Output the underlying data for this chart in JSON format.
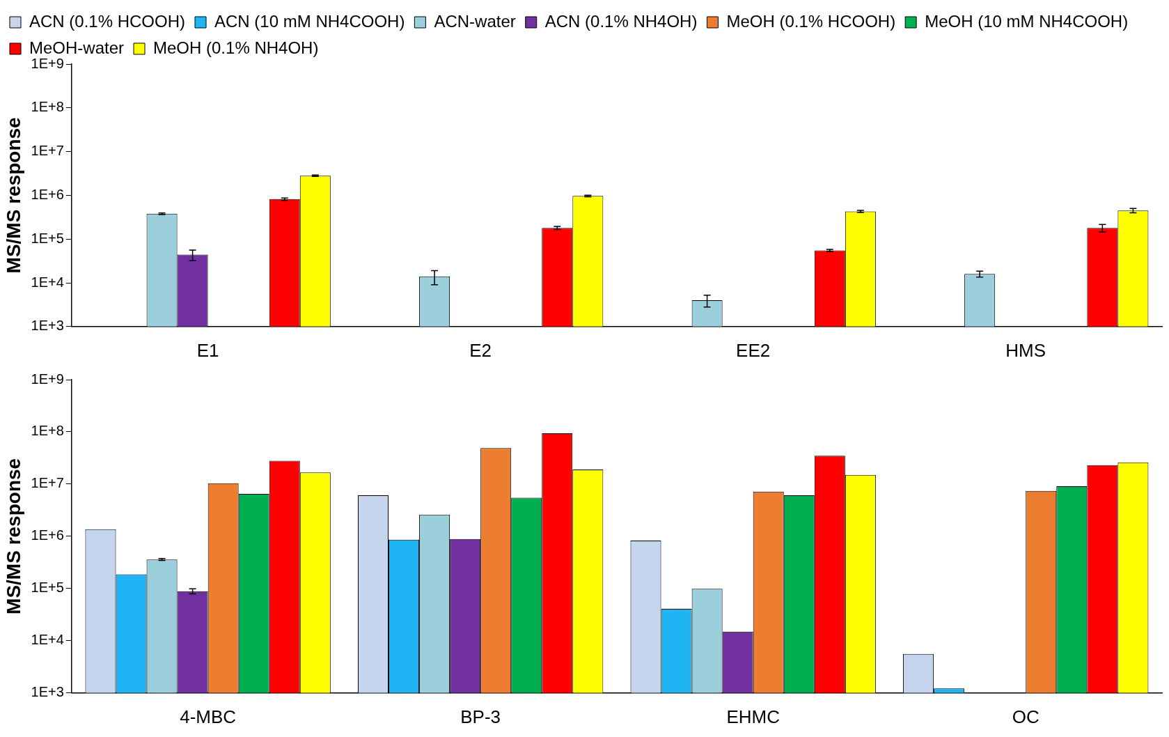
{
  "chart_data": [
    {
      "type": "bar",
      "ylabel": "MS/MS response",
      "categories": [
        "E1",
        "E2",
        "EE2",
        "HMS"
      ],
      "log": true,
      "grid": false,
      "legend": "top",
      "ylim": [
        1000,
        1000000000
      ],
      "yticks": [
        {
          "value": 1000,
          "label": "1E+3"
        },
        {
          "value": 10000,
          "label": "1E+4"
        },
        {
          "value": 100000,
          "label": "1E+5"
        },
        {
          "value": 1000000,
          "label": "1E+6"
        },
        {
          "value": 10000000,
          "label": "1E+7"
        },
        {
          "value": 100000000,
          "label": "1E+8"
        },
        {
          "value": 1000000000,
          "label": "1E+9"
        }
      ],
      "series": [
        {
          "name": "ACN (0.1% HCOOH)",
          "color": "#c5d5ee",
          "values": [
            null,
            null,
            null,
            null
          ]
        },
        {
          "name": "ACN (10 mM NH4COOH)",
          "color": "#1fb5f5",
          "values": [
            null,
            null,
            null,
            null
          ]
        },
        {
          "name": "ACN-water",
          "color": "#9ccfdc",
          "values": [
            380000,
            14000,
            4000,
            16000
          ],
          "errors": [
            15000,
            5000,
            1200,
            2500
          ]
        },
        {
          "name": "ACN (0.1% NH4OH)",
          "color": "#7030a0",
          "values": [
            44000,
            null,
            null,
            null
          ],
          "errors": [
            12000,
            null,
            null,
            null
          ]
        },
        {
          "name": "MeOH (0.1% HCOOH)",
          "color": "#ed7d31",
          "values": [
            null,
            null,
            null,
            null
          ]
        },
        {
          "name": "MeOH (10 mM NH4COOH)",
          "color": "#00b050",
          "values": [
            null,
            null,
            null,
            null
          ]
        },
        {
          "name": "MeOH-water",
          "color": "#ff0000",
          "values": [
            820000,
            180000,
            55000,
            180000
          ],
          "errors": [
            50000,
            15000,
            3000,
            35000
          ]
        },
        {
          "name": "MeOH (0.1% NH4OH)",
          "color": "#ffff00",
          "values": [
            2800000,
            970000,
            430000,
            450000
          ],
          "errors": [
            100000,
            40000,
            25000,
            50000
          ]
        }
      ]
    },
    {
      "type": "bar",
      "ylabel": "MS/MS response",
      "categories": [
        "4-MBC",
        "BP-3",
        "EHMC",
        "OC"
      ],
      "log": true,
      "grid": false,
      "ylim": [
        1000,
        1000000000
      ],
      "yticks": [
        {
          "value": 1000,
          "label": "1E+3"
        },
        {
          "value": 10000,
          "label": "1E+4"
        },
        {
          "value": 100000,
          "label": "1E+5"
        },
        {
          "value": 1000000,
          "label": "1E+6"
        },
        {
          "value": 10000000,
          "label": "1E+7"
        },
        {
          "value": 100000000,
          "label": "1E+8"
        },
        {
          "value": 1000000000,
          "label": "1E+9"
        }
      ],
      "series": [
        {
          "color": "#c5d5ee",
          "values": [
            1370000,
            6100000,
            830000,
            5600
          ]
        },
        {
          "color": "#1fb5f5",
          "values": [
            187000,
            860000,
            41000,
            1220
          ]
        },
        {
          "color": "#9ccfdc",
          "values": [
            360000,
            2600000,
            99000,
            null
          ],
          "errors": [
            15000,
            null,
            null,
            null
          ]
        },
        {
          "color": "#7030a0",
          "values": [
            89000,
            890000,
            15000,
            null
          ],
          "errors": [
            10000,
            null,
            null,
            null
          ]
        },
        {
          "color": "#ed7d31",
          "values": [
            10400000,
            49000000,
            7200000,
            7400000
          ]
        },
        {
          "color": "#00b050",
          "values": [
            6500000,
            5500000,
            6100000,
            9100000
          ]
        },
        {
          "color": "#ff0000",
          "values": [
            28000000,
            94000000,
            35000000,
            23000000
          ]
        },
        {
          "color": "#ffff00",
          "values": [
            16700000,
            19000000,
            15000000,
            26000000
          ]
        }
      ]
    }
  ]
}
